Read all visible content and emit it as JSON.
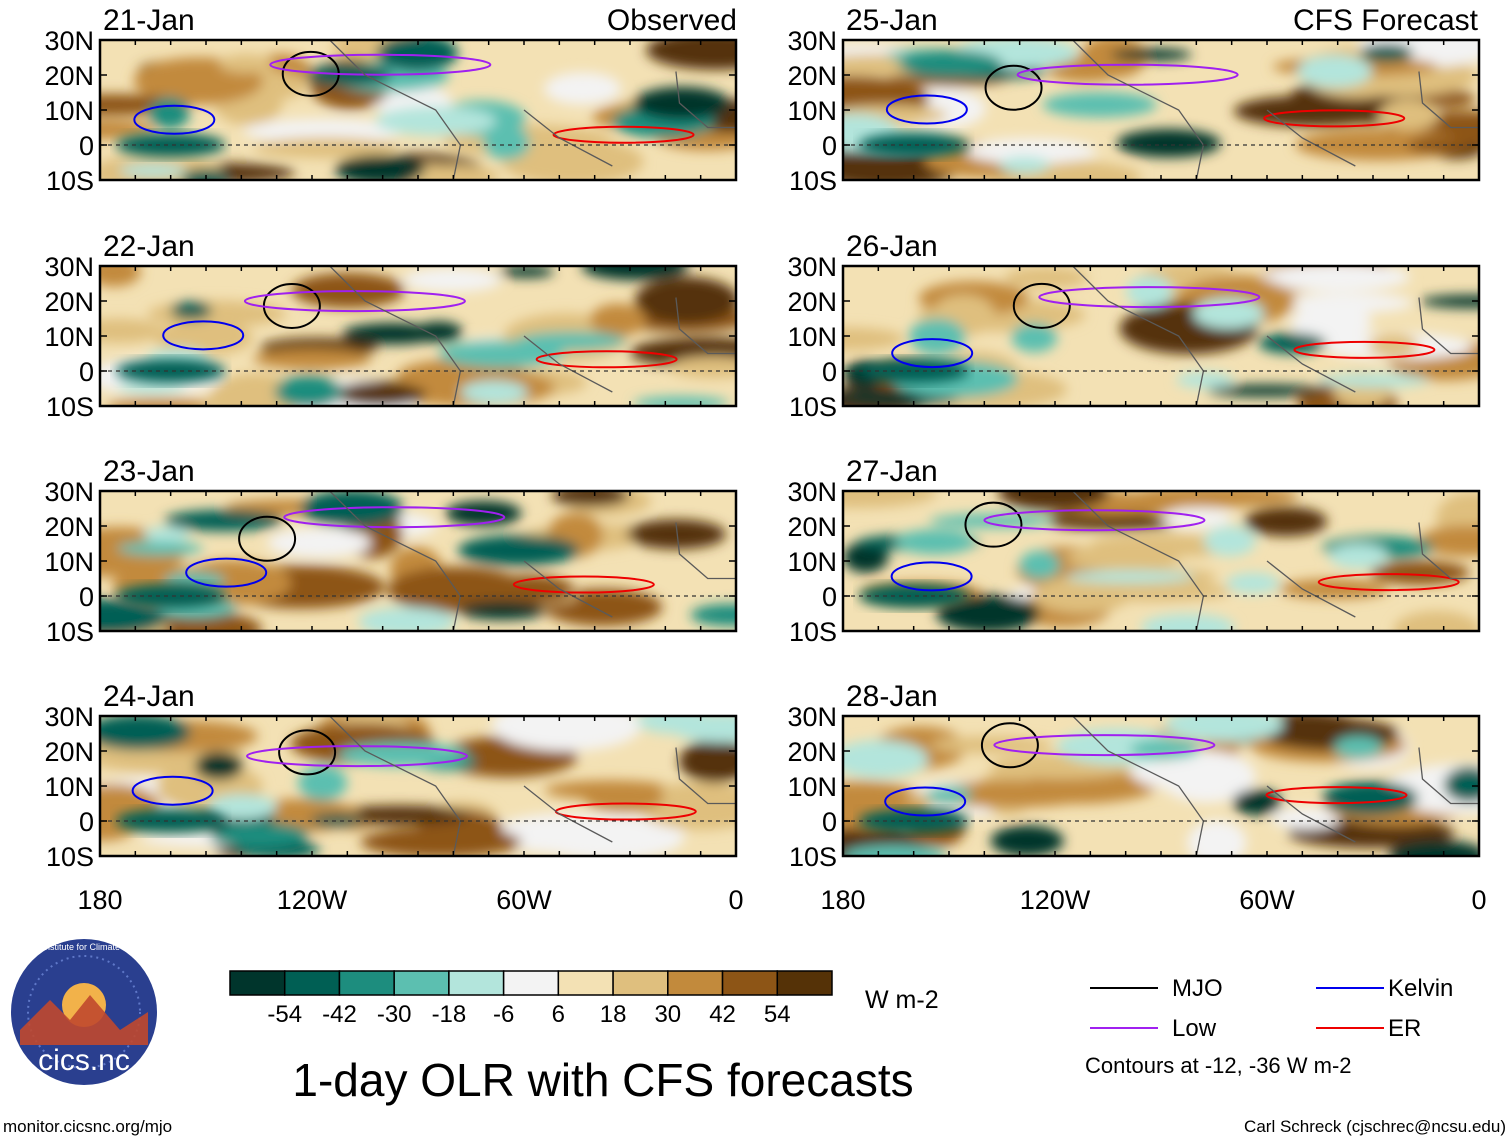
{
  "chart_data": {
    "type": "heatmap",
    "title": "1-day OLR with CFS forecasts",
    "units": "W m-2",
    "left_column_label": "Observed",
    "right_column_label": "CFS Forecast",
    "panels": [
      {
        "date": "21-Jan",
        "source": "Observed"
      },
      {
        "date": "22-Jan",
        "source": "Observed"
      },
      {
        "date": "23-Jan",
        "source": "Observed"
      },
      {
        "date": "24-Jan",
        "source": "Observed"
      },
      {
        "date": "25-Jan",
        "source": "CFS Forecast"
      },
      {
        "date": "26-Jan",
        "source": "CFS Forecast"
      },
      {
        "date": "27-Jan",
        "source": "CFS Forecast"
      },
      {
        "date": "28-Jan",
        "source": "CFS Forecast"
      }
    ],
    "lat_ticks": [
      "30N",
      "20N",
      "10N",
      "0",
      "10S"
    ],
    "lat_values": [
      30,
      20,
      10,
      0,
      -10
    ],
    "lon_ticks": [
      "180",
      "120W",
      "60W",
      "0"
    ],
    "lon_values": [
      -180,
      -120,
      -60,
      0
    ],
    "xlim": [
      -180,
      0
    ],
    "ylim": [
      -10,
      30
    ],
    "colorbar": {
      "levels": [
        "-54",
        "-42",
        "-30",
        "-18",
        "-6",
        "6",
        "18",
        "30",
        "42",
        "54"
      ],
      "colors": [
        "#00352c",
        "#005f54",
        "#1d8d7e",
        "#5cbfb0",
        "#b3e5dc",
        "#f3f3f3",
        "#f3e1b4",
        "#dfbf7e",
        "#c28a3c",
        "#8d5516",
        "#553207"
      ]
    },
    "legend": [
      {
        "label": "MJO",
        "color": "#000000"
      },
      {
        "label": "Kelvin",
        "color": "#0000ee"
      },
      {
        "label": "Low",
        "color": "#a020f0"
      },
      {
        "label": "ER",
        "color": "#ee0000"
      }
    ],
    "contour_note": "Contours at -12, -36 W m-2"
  },
  "footer": {
    "logo_text": "cics.nc",
    "logo_ring_text": "Cooperative Institute for Climate and Satellites",
    "left_url": "monitor.cicsnc.org/mjo",
    "right_credit": "Carl Schreck (cjschrec@ncsu.edu)"
  }
}
